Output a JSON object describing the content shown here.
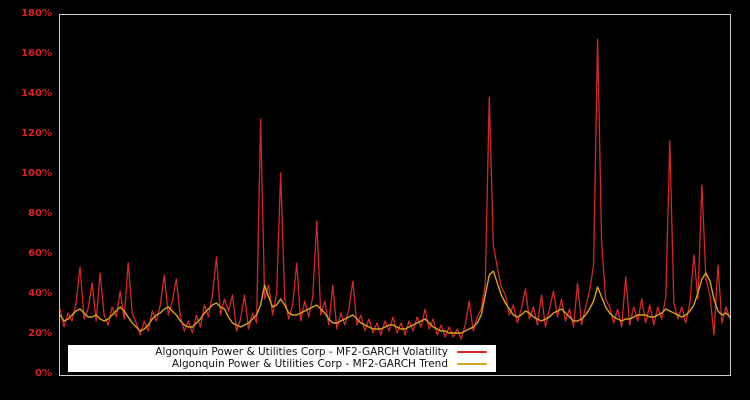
{
  "figure": {
    "background": "#000000",
    "plot_border_color": "#cbcbcb",
    "tick_label_color": "#d8231f"
  },
  "y_axis": {
    "ticks": [
      "180%",
      "160%",
      "140%",
      "120%",
      "100%",
      "80%",
      "60%",
      "40%",
      "20%",
      "0%"
    ]
  },
  "legend": {
    "items": [
      {
        "label": "Algonquin Power & Utilities Corp - MF2-GARCH Volatility",
        "color": "#d62728"
      },
      {
        "label": "Algonquin Power & Utilities Corp - MF2-GARCH Trend",
        "color": "#d3a421"
      }
    ]
  },
  "chart_data": {
    "type": "line",
    "title": "",
    "xlabel": "",
    "ylabel": "",
    "ylim": [
      0,
      180
    ],
    "y_unit": "percent",
    "y_ticks_percent": [
      180,
      160,
      140,
      120,
      100,
      80,
      60,
      40,
      20,
      0
    ],
    "x_axis": "time index (daily observations, no tick labels shown)",
    "grid": false,
    "legend_position": "lower-left inside plot, labels right-aligned with line markers on right",
    "background": "black",
    "series": [
      {
        "name": "Algonquin Power & Utilities Corp - MF2-GARCH Volatility",
        "color": "#d62728",
        "style": "noisy daily conditional volatility with large spikes (~128%, ~101%, ~139%, ~168%, ~117%, ~95%)",
        "values_percent": [
          33,
          24,
          31,
          27,
          36,
          54,
          28,
          33,
          46,
          27,
          51,
          30,
          25,
          34,
          29,
          42,
          28,
          56,
          31,
          26,
          20,
          27,
          22,
          32,
          27,
          35,
          50,
          30,
          37,
          48,
          29,
          22,
          27,
          21,
          30,
          24,
          35,
          29,
          40,
          59,
          30,
          38,
          32,
          40,
          22,
          28,
          40,
          23,
          31,
          26,
          128,
          38,
          45,
          30,
          41,
          101,
          38,
          28,
          35,
          56,
          27,
          37,
          29,
          39,
          77,
          30,
          37,
          25,
          45,
          23,
          31,
          25,
          33,
          47,
          25,
          30,
          22,
          28,
          21,
          26,
          20,
          27,
          22,
          29,
          21,
          26,
          20,
          27,
          22,
          29,
          24,
          33,
          23,
          28,
          20,
          25,
          19,
          24,
          19,
          23,
          18,
          25,
          37,
          22,
          29,
          33,
          45,
          139,
          65,
          54,
          44,
          40,
          30,
          35,
          26,
          33,
          43,
          28,
          34,
          25,
          40,
          24,
          33,
          42,
          29,
          38,
          27,
          33,
          24,
          46,
          25,
          34,
          42,
          55,
          168,
          66,
          38,
          34,
          26,
          33,
          24,
          49,
          25,
          34,
          27,
          38,
          26,
          35,
          25,
          34,
          28,
          39,
          117,
          36,
          28,
          34,
          26,
          36,
          60,
          38,
          95,
          48,
          40,
          20,
          55,
          26,
          34,
          28
        ]
      },
      {
        "name": "Algonquin Power & Utilities Corp - MF2-GARCH Trend",
        "color": "#d3a421",
        "style": "smooth long-run trend component, mostly 21-36%, peaks ~52% and ~51%",
        "values_percent": [
          30,
          27,
          28,
          30,
          32,
          33,
          31,
          29,
          29,
          30,
          28,
          27,
          28,
          30,
          32,
          34,
          32,
          29,
          26,
          24,
          22,
          23,
          25,
          28,
          30,
          31,
          33,
          34,
          32,
          30,
          27,
          25,
          24,
          24,
          26,
          28,
          31,
          33,
          35,
          36,
          34,
          33,
          29,
          26,
          25,
          24,
          25,
          26,
          28,
          30,
          35,
          45,
          39,
          34,
          35,
          38,
          35,
          31,
          30,
          30,
          31,
          32,
          33,
          34,
          35,
          33,
          31,
          28,
          26,
          26,
          27,
          28,
          29,
          30,
          28,
          26,
          25,
          24,
          23,
          23,
          23,
          24,
          25,
          25,
          24,
          23,
          23,
          24,
          25,
          26,
          27,
          28,
          26,
          24,
          23,
          22,
          22,
          21,
          21,
          21,
          21,
          22,
          23,
          24,
          26,
          30,
          40,
          50,
          52,
          46,
          40,
          36,
          33,
          30,
          29,
          30,
          32,
          31,
          29,
          28,
          27,
          28,
          29,
          31,
          32,
          33,
          31,
          29,
          27,
          27,
          28,
          30,
          33,
          37,
          44,
          39,
          34,
          31,
          29,
          28,
          27,
          28,
          28,
          29,
          30,
          30,
          30,
          29,
          29,
          30,
          31,
          33,
          32,
          31,
          30,
          29,
          30,
          32,
          35,
          41,
          48,
          51,
          47,
          38,
          32,
          30,
          31,
          29
        ]
      }
    ]
  }
}
